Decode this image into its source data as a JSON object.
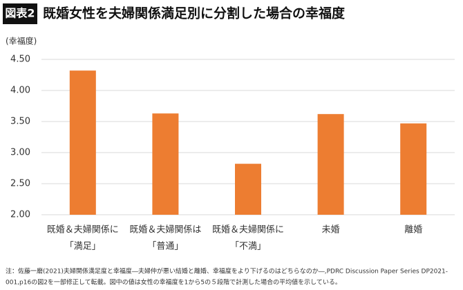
{
  "chart_data": {
    "type": "bar",
    "badge": "図表2",
    "title": "既婚女性を夫婦関係満足別に分割した場合の幸福度",
    "y_axis_label": "(幸福度)",
    "categories": [
      [
        "既婚＆夫婦関係に",
        "「満足」"
      ],
      [
        "既婚＆夫婦関係は",
        "「普通」"
      ],
      [
        "既婚＆夫婦関係に",
        "「不満」"
      ],
      [
        "未婚"
      ],
      [
        "離婚"
      ]
    ],
    "values": [
      4.32,
      3.63,
      2.82,
      3.62,
      3.47
    ],
    "color": "#ed7d31",
    "ylim": [
      2,
      4.5
    ],
    "yticks": [
      {
        "value": 2,
        "label": "2.00"
      },
      {
        "value": 2.5,
        "label": "2.50"
      },
      {
        "value": 3,
        "label": "3.00"
      },
      {
        "value": 3.5,
        "label": "3.50"
      },
      {
        "value": 4,
        "label": "4.00"
      },
      {
        "value": 4.5,
        "label": "4.50"
      }
    ],
    "grid": true,
    "notes": [
      "注：佐藤一磨(2021)夫婦関係満足度と幸福度―夫婦仲が悪い結婚と離婚、幸福度をより下げるのはどちらなのか―,PDRC Discussion Paper Series DP2021-",
      "001,p16の図2を一部修正して転載。図中の値は女性の幸福度を1から5の５段階で計測した場合の平均値を示している。"
    ]
  }
}
